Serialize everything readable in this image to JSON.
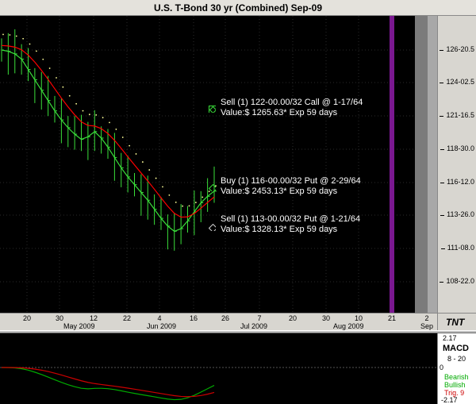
{
  "window": {
    "title": "U.S. T-Bond 30 yr (Combined) Sep-09"
  },
  "chart_data": {
    "type": "line",
    "title": "U.S. T-Bond 30 yr (Combined) Sep-09",
    "y_ticks": [
      "126-20.5",
      "124-02.5",
      "121-16.5",
      "118-30.0",
      "116-12.0",
      "113-26.0",
      "111-08.0",
      "108-22.0"
    ],
    "x_day_ticks": [
      "20",
      "30",
      "12",
      "22",
      "4",
      "16",
      "26",
      "7",
      "20",
      "30",
      "10",
      "21",
      "2"
    ],
    "x_month_ticks": [
      "May 2009",
      "Jun 2009",
      "Jul 2009",
      "Aug 2009",
      "Sep"
    ],
    "price_close_path": [
      126.6,
      126.5,
      126.3,
      125.9,
      125.1,
      124.3,
      123.5,
      122.7,
      121.9,
      121.2,
      120.6,
      120.1,
      119.7,
      119.9,
      120.3,
      119.8,
      119.1,
      118.3,
      117.5,
      116.8,
      116.2,
      115.6,
      115.0,
      114.3,
      113.6,
      113.0,
      112.6,
      112.8,
      113.4,
      114.1,
      114.8,
      115.3,
      115.7
    ]
  },
  "annotations": [
    {
      "line1": "Sell (1) 122-00.00/32 Call @ 1-17/64",
      "line2": "Value:$ 1265.63* Exp 59 days"
    },
    {
      "line1": "Buy (1) 116-00.00/32 Put @ 2-29/64",
      "line2": "Value:$ 2453.13* Exp 59 days"
    },
    {
      "line1": "Sell (1) 113-00.00/32 Put @ 1-21/64",
      "line2": "Value:$ 1328.13* Exp 59 days"
    }
  ],
  "macd": {
    "title": "MACD",
    "params": "8 - 20",
    "bearish": "Bearish",
    "bullish": "Bullish",
    "trig": "Trig. 9",
    "top_value": "2.17",
    "bottom_value": "-2.17",
    "zero_label": "0"
  },
  "colors": {
    "price": "#3adf3a",
    "ema": "#ff0000",
    "dots": "#ffff99",
    "expiry": "#7a1890",
    "bearish": "#00aa00",
    "bullish": "#00aa00",
    "trig": "#cc0000"
  },
  "tnt_label": "TNT"
}
